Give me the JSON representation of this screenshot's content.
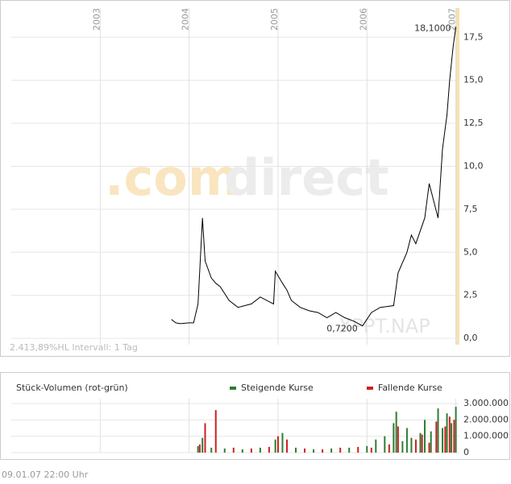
{
  "chart_data": [
    {
      "type": "line",
      "color": "#000000",
      "x": [
        2003.8,
        2003.85,
        2003.9,
        2004.0,
        2004.05,
        2004.1,
        2004.15,
        2004.18,
        2004.25,
        2004.3,
        2004.35,
        2004.45,
        2004.55,
        2004.7,
        2004.8,
        2004.95,
        2004.97,
        2005.05,
        2005.1,
        2005.15,
        2005.25,
        2005.35,
        2005.45,
        2005.55,
        2005.65,
        2005.75,
        2005.85,
        2005.95,
        2006.05,
        2006.15,
        2006.3,
        2006.35,
        2006.45,
        2006.5,
        2006.55,
        2006.65,
        2006.7,
        2006.75,
        2006.8,
        2006.85,
        2006.9,
        2006.93,
        2006.97,
        2007.0
      ],
      "values": [
        1.1,
        0.9,
        0.85,
        0.9,
        0.9,
        2.0,
        7.0,
        4.5,
        3.5,
        3.2,
        3.0,
        2.2,
        1.8,
        2.0,
        2.4,
        2.0,
        3.9,
        3.2,
        2.8,
        2.2,
        1.8,
        1.6,
        1.5,
        1.2,
        1.5,
        1.2,
        1.0,
        0.72,
        1.5,
        1.8,
        1.9,
        3.8,
        5.0,
        6.0,
        5.5,
        7.0,
        9.0,
        8.0,
        7.0,
        11.0,
        13.0,
        15.0,
        17.0,
        18.1
      ],
      "xlim": [
        2002,
        2007.04
      ],
      "xticks": [
        2003,
        2004,
        2005,
        2006,
        2007
      ],
      "ylim": [
        -0.37,
        19.2
      ],
      "yticks": [
        {
          "value": 0,
          "label": "0,0"
        },
        {
          "value": 2.5,
          "label": "2,5"
        },
        {
          "value": 5,
          "label": "5,0"
        },
        {
          "value": 7.5,
          "label": "7,5"
        },
        {
          "value": 10,
          "label": "10,0"
        },
        {
          "value": 12.5,
          "label": "12,5"
        },
        {
          "value": 15,
          "label": "15,0"
        },
        {
          "value": 17.5,
          "label": "17,5"
        }
      ],
      "grid": true,
      "annotations": [
        "18,1000",
        "0,7200"
      ],
      "watermark": "XPPT.NAP",
      "logo_dot": ".com",
      "logo_rest": "direct",
      "info": "2.413,89%HL  Intervall: 1 Tag"
    },
    {
      "type": "bar",
      "title": "Stück-Volumen (rot-grün)",
      "xlim": [
        2002,
        2007.04
      ],
      "xticks": [
        2003,
        2004,
        2005,
        2006,
        2007
      ],
      "ylim": [
        0,
        3300000
      ],
      "yticks": [
        0,
        {
          "value": 1000000,
          "label": "1.000.000"
        },
        {
          "value": 2000000,
          "label": "2.000.000"
        },
        {
          "value": 3000000,
          "label": "3.000.000"
        }
      ],
      "series": [
        {
          "name": "Steigende Kurse",
          "color": "#2e7d32",
          "x": [
            2004.1,
            2004.15,
            2004.25,
            2004.4,
            2004.6,
            2004.8,
            2004.97,
            2005.05,
            2005.2,
            2005.4,
            2005.6,
            2005.8,
            2006.0,
            2006.1,
            2006.2,
            2006.3,
            2006.33,
            2006.4,
            2006.45,
            2006.5,
            2006.6,
            2006.65,
            2006.72,
            2006.8,
            2006.85,
            2006.9,
            2006.95,
            2007.0
          ],
          "values": [
            400000,
            900000,
            300000,
            250000,
            200000,
            300000,
            800000,
            1200000,
            300000,
            200000,
            250000,
            300000,
            400000,
            800000,
            1000000,
            1800000,
            2500000,
            700000,
            1500000,
            900000,
            1200000,
            2000000,
            1300000,
            2700000,
            1500000,
            2400000,
            1800000,
            2800000
          ]
        },
        {
          "name": "Fallende Kurse",
          "color": "#cc2222",
          "x": [
            2004.12,
            2004.18,
            2004.3,
            2004.5,
            2004.7,
            2004.9,
            2005.0,
            2005.1,
            2005.3,
            2005.5,
            2005.7,
            2005.9,
            2006.05,
            2006.25,
            2006.35,
            2006.55,
            2006.62,
            2006.7,
            2006.78,
            2006.88,
            2006.93,
            2006.98
          ],
          "values": [
            500000,
            1800000,
            2600000,
            300000,
            250000,
            350000,
            1000000,
            800000,
            250000,
            200000,
            300000,
            350000,
            300000,
            500000,
            1600000,
            800000,
            1100000,
            600000,
            1900000,
            1600000,
            2200000,
            2000000
          ]
        }
      ]
    }
  ],
  "footer": "09.01.07    22:00 Uhr"
}
